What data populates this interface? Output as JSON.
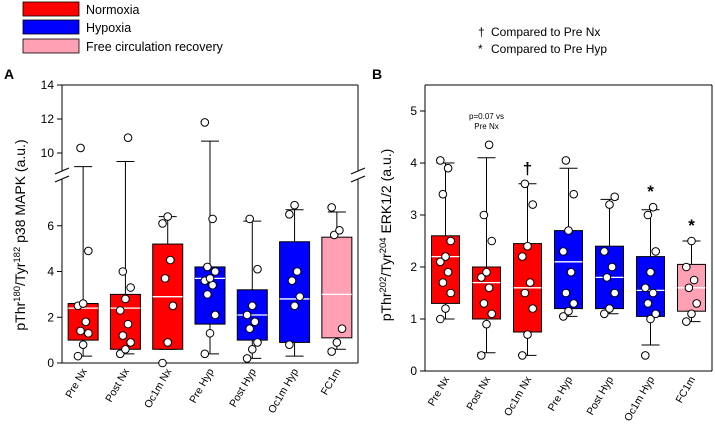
{
  "legend": {
    "items": [
      {
        "label": "Normoxia",
        "color": "#ff0000"
      },
      {
        "label": "Hypoxia",
        "color": "#0000ff"
      },
      {
        "label": "Free circulation recovery",
        "color": "#ffa0b4"
      }
    ]
  },
  "notes": {
    "dagger_symbol": "†",
    "dagger_text": "Compared to Pre Nx",
    "star_symbol": "*",
    "star_text": "Compared to Pre Hyp"
  },
  "chart_data": [
    {
      "panel": "A",
      "type": "box",
      "ylabel_parts": [
        "pThr",
        "180",
        "/Tyr",
        "182",
        " p38 MAPK (a.u.)"
      ],
      "categories": [
        "Pre Nx",
        "Post Nx",
        "Oc1m Nx",
        "Pre Hyp",
        "Post Hyp",
        "Oc1m Hyp",
        "FC1m"
      ],
      "colors": [
        "#ff0000",
        "#ff0000",
        "#ff0000",
        "#0000ff",
        "#0000ff",
        "#0000ff",
        "#ffa0b4"
      ],
      "axis_break": {
        "lower_range": [
          0,
          8
        ],
        "upper_range": [
          9,
          14
        ]
      },
      "yticks_lower": [
        0,
        2,
        4,
        6
      ],
      "yticks_upper": [
        10,
        12,
        14
      ],
      "boxes": [
        {
          "whisker_low": 0.3,
          "q1": 1.0,
          "median": 2.4,
          "q3": 2.6,
          "whisker_high": 9.2
        },
        {
          "whisker_low": 0.4,
          "q1": 0.6,
          "median": 2.4,
          "q3": 3.0,
          "whisker_high": 9.5
        },
        {
          "whisker_low": 0.6,
          "q1": 0.6,
          "median": 2.9,
          "q3": 5.2,
          "whisker_high": 6.4
        },
        {
          "whisker_low": 0.4,
          "q1": 1.7,
          "median": 3.7,
          "q3": 4.2,
          "whisker_high": 10.7
        },
        {
          "whisker_low": 0.2,
          "q1": 1.0,
          "median": 2.1,
          "q3": 3.2,
          "whisker_high": 6.2
        },
        {
          "whisker_low": 0.3,
          "q1": 0.9,
          "median": 2.8,
          "q3": 5.3,
          "whisker_high": 6.7
        },
        {
          "whisker_low": 0.6,
          "q1": 1.1,
          "median": 3.0,
          "q3": 5.5,
          "whisker_high": 6.6
        }
      ],
      "points": [
        [
          0.3,
          0.8,
          1.3,
          1.4,
          1.8,
          2.5,
          2.6,
          4.9,
          10.3
        ],
        [
          0.4,
          0.6,
          0.9,
          1.2,
          1.7,
          2.3,
          2.8,
          3.3,
          4.0,
          10.9
        ],
        [
          0.0,
          0.9,
          2.5,
          3.7,
          4.5,
          6.1,
          6.4
        ],
        [
          0.4,
          1.3,
          2.1,
          3.0,
          3.4,
          3.6,
          3.7,
          4.0,
          4.2,
          6.3,
          11.8
        ],
        [
          0.2,
          0.6,
          0.9,
          1.5,
          1.8,
          2.1,
          2.5,
          4.1,
          6.3
        ],
        [
          0.8,
          2.5,
          2.9,
          3.6,
          4.0,
          6.5,
          6.9
        ],
        [
          0.5,
          0.9,
          1.5,
          5.6,
          5.8,
          6.8
        ]
      ]
    },
    {
      "panel": "B",
      "type": "box",
      "ylabel_parts": [
        "pThr",
        "202",
        "/Tyr",
        "204",
        " ERK1/2 (a.u.)"
      ],
      "categories": [
        "Pre Nx",
        "Post Nx",
        "Oc1m Nx",
        "Pre Hyp",
        "Post Hyp",
        "Oc1m Hyp",
        "FC1m"
      ],
      "colors": [
        "#ff0000",
        "#ff0000",
        "#ff0000",
        "#0000ff",
        "#0000ff",
        "#0000ff",
        "#ffa0b4"
      ],
      "ylim": [
        0,
        5.5
      ],
      "yticks": [
        0,
        1,
        2,
        3,
        4,
        5
      ],
      "boxes": [
        {
          "whisker_low": 1.0,
          "q1": 1.3,
          "median": 2.2,
          "q3": 2.6,
          "whisker_high": 4.0
        },
        {
          "whisker_low": 0.35,
          "q1": 1.0,
          "median": 1.7,
          "q3": 2.0,
          "whisker_high": 4.1
        },
        {
          "whisker_low": 0.3,
          "q1": 0.75,
          "median": 1.6,
          "q3": 2.45,
          "whisker_high": 3.6
        },
        {
          "whisker_low": 1.05,
          "q1": 1.2,
          "median": 2.1,
          "q3": 2.7,
          "whisker_high": 3.9
        },
        {
          "whisker_low": 1.1,
          "q1": 1.2,
          "median": 1.8,
          "q3": 2.4,
          "whisker_high": 3.3
        },
        {
          "whisker_low": 0.5,
          "q1": 1.05,
          "median": 1.55,
          "q3": 2.2,
          "whisker_high": 3.1
        },
        {
          "whisker_low": 0.95,
          "q1": 1.15,
          "median": 1.6,
          "q3": 2.05,
          "whisker_high": 2.5
        }
      ],
      "points": [
        [
          1.0,
          1.2,
          1.5,
          1.7,
          1.9,
          2.1,
          2.2,
          2.5,
          3.4,
          3.9,
          4.05
        ],
        [
          0.3,
          0.9,
          1.1,
          1.3,
          1.6,
          1.8,
          1.9,
          2.5,
          3.0,
          4.35
        ],
        [
          0.3,
          0.7,
          1.2,
          1.5,
          1.7,
          2.2,
          2.4,
          3.2,
          3.6
        ],
        [
          1.05,
          1.15,
          1.3,
          1.5,
          1.9,
          2.3,
          2.7,
          3.4,
          4.05
        ],
        [
          1.1,
          1.2,
          1.5,
          1.8,
          2.0,
          2.3,
          3.2,
          3.35
        ],
        [
          0.3,
          1.0,
          1.1,
          1.3,
          1.5,
          1.6,
          1.9,
          2.3,
          3.0,
          3.15
        ],
        [
          0.95,
          1.1,
          1.3,
          1.6,
          1.75,
          2.0,
          2.5
        ]
      ],
      "annotations": [
        {
          "category_index": 1,
          "lines": [
            "p=0.07 vs",
            "Pre Nx"
          ]
        },
        {
          "category_index": 2,
          "symbol": "†"
        },
        {
          "category_index": 5,
          "symbol": "*"
        },
        {
          "category_index": 6,
          "symbol": "*"
        }
      ]
    }
  ]
}
